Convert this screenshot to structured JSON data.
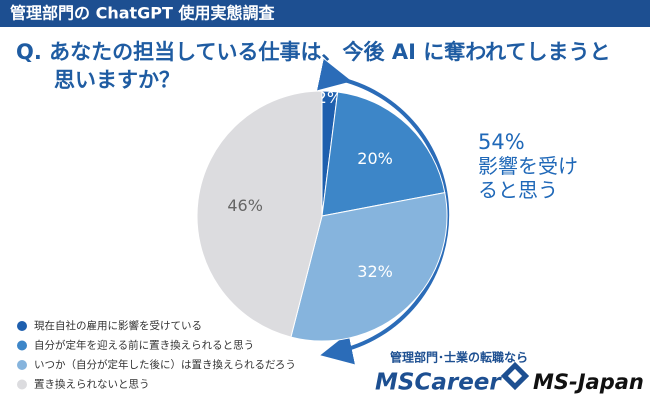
{
  "header": "管理部門の ChatGPT 使用実態調査",
  "chart_data": {
    "type": "pie",
    "title": "Q. あなたの担当している仕事は、今後 AI に奪われてしまうと思いますか？",
    "categories": [
      "現在自社の雇用に影響を受けている",
      "自分が定年を迎える前に置き換えられると思う",
      "いつか（自分が定年した後に）は置き換えられるだろう",
      "置き換えられないと思う"
    ],
    "values": [
      2,
      20,
      32,
      46
    ],
    "value_labels": [
      "2%",
      "20%",
      "32%",
      "46%"
    ],
    "colors": [
      "#1e5fae",
      "#3d86c8",
      "#86b4dd",
      "#dcdcdf"
    ],
    "annotation": {
      "value_label": "54%",
      "text": "影響を受けると思う"
    }
  },
  "footer": {
    "tagline": "管理部門･士業の転職なら",
    "brand1": "MSCareer",
    "brand2": "MS-Japan"
  }
}
